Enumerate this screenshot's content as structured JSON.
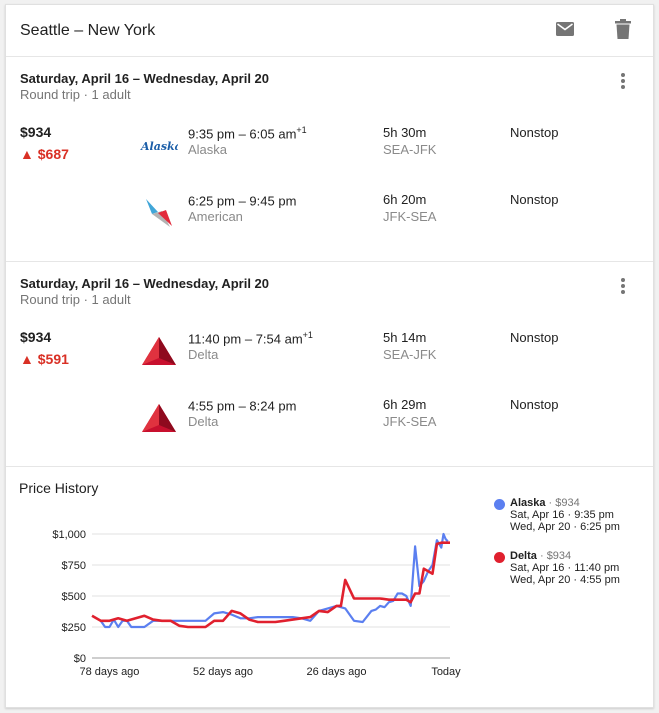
{
  "header": {
    "title": "Seattle – New York"
  },
  "trips": [
    {
      "dates": "Saturday, April 16 – Wednesday, April 20",
      "sub": "Round trip · 1 adult",
      "price": "$934",
      "drop": "▲ $687",
      "legs": [
        {
          "logo": "alaska-logo",
          "times": "9:35 pm – 6:05 am",
          "plus_day": "+1",
          "airline": "Alaska",
          "duration": "5h 30m",
          "route": "SEA-JFK",
          "stops": "Nonstop"
        },
        {
          "logo": "american-logo",
          "times": "6:25 pm – 9:45 pm",
          "plus_day": "",
          "airline": "American",
          "duration": "6h 20m",
          "route": "JFK-SEA",
          "stops": "Nonstop"
        }
      ]
    },
    {
      "dates": "Saturday, April 16 – Wednesday, April 20",
      "sub": "Round trip · 1 adult",
      "price": "$934",
      "drop": "▲ $591",
      "legs": [
        {
          "logo": "delta-logo",
          "times": "11:40 pm – 7:54 am",
          "plus_day": "+1",
          "airline": "Delta",
          "duration": "5h 14m",
          "route": "SEA-JFK",
          "stops": "Nonstop"
        },
        {
          "logo": "delta-logo",
          "times": "4:55 pm – 8:24 pm",
          "plus_day": "",
          "airline": "Delta",
          "duration": "6h 29m",
          "route": "JFK-SEA",
          "stops": "Nonstop"
        }
      ]
    }
  ],
  "history": {
    "title": "Price History",
    "legend": [
      {
        "name": "Alaska",
        "price": "$934",
        "color": "#5b7ff0",
        "line1": "Sat, Apr 16 · 9:35 pm",
        "line2": "Wed, Apr 20 · 6:25 pm"
      },
      {
        "name": "Delta",
        "price": "$934",
        "color": "#e0202e",
        "line1": "Sat, Apr 16 · 11:40 pm",
        "line2": "Wed, Apr 20 · 4:55 pm"
      }
    ]
  },
  "colors": {
    "alaska": "#5b7ff0",
    "delta": "#e0202e",
    "drop": "#d93025",
    "alaska_logo": "#1b5ea8",
    "delta_logo": "#c8102e"
  },
  "icons": {
    "mail": "mail-icon",
    "trash": "trash-icon",
    "more": "more-vert-icon"
  },
  "chart_data": {
    "type": "line",
    "title": "Price History",
    "yticks": [
      "$0",
      "$250",
      "$500",
      "$750",
      "$1,000"
    ],
    "ylim": [
      0,
      1000
    ],
    "xticks": [
      "78 days ago",
      "52 days ago",
      "26 days ago",
      "Today"
    ],
    "xtick_days": [
      78,
      52,
      26,
      0
    ],
    "xlim_days_ago": [
      82,
      0
    ],
    "grid": true,
    "series": [
      {
        "name": "Alaska",
        "color": "#5b7ff0",
        "days_ago": [
          80,
          79,
          78,
          77,
          76,
          75,
          74,
          73,
          72,
          70,
          68,
          66,
          64,
          62,
          60,
          58,
          56,
          54,
          52,
          50,
          48,
          46,
          44,
          42,
          40,
          38,
          36,
          34,
          32,
          30,
          28,
          26,
          24,
          22,
          20,
          18,
          17,
          16,
          15,
          14,
          13,
          12,
          11,
          10,
          9,
          8,
          7,
          6,
          5,
          4,
          3,
          2,
          1.5,
          1,
          0.5
        ],
        "values": [
          300,
          250,
          250,
          310,
          250,
          300,
          300,
          250,
          250,
          250,
          300,
          300,
          300,
          300,
          300,
          300,
          300,
          360,
          370,
          350,
          320,
          320,
          330,
          330,
          330,
          330,
          330,
          320,
          300,
          380,
          400,
          420,
          400,
          300,
          290,
          380,
          390,
          420,
          410,
          450,
          460,
          520,
          520,
          500,
          420,
          900,
          580,
          620,
          700,
          750,
          950,
          890,
          1000,
          960,
          940
        ]
      },
      {
        "name": "Delta",
        "color": "#e0202e",
        "days_ago": [
          82,
          80,
          78,
          76,
          74,
          72,
          70,
          68,
          66,
          64,
          62,
          60,
          58,
          56,
          54,
          52,
          50,
          48,
          46,
          44,
          42,
          40,
          38,
          36,
          34,
          32,
          30,
          28,
          26,
          25,
          24,
          22,
          20,
          18,
          16,
          14,
          12,
          10,
          9,
          8,
          7,
          6,
          5,
          4,
          3,
          2,
          1.5,
          1,
          0.5,
          0
        ],
        "values": [
          340,
          300,
          300,
          320,
          300,
          320,
          340,
          310,
          300,
          300,
          260,
          250,
          250,
          250,
          300,
          300,
          380,
          360,
          310,
          290,
          290,
          290,
          300,
          310,
          320,
          330,
          380,
          370,
          420,
          420,
          630,
          480,
          480,
          480,
          480,
          470,
          470,
          470,
          450,
          520,
          520,
          720,
          700,
          680,
          920,
          930,
          930,
          930,
          930,
          930
        ]
      }
    ]
  }
}
